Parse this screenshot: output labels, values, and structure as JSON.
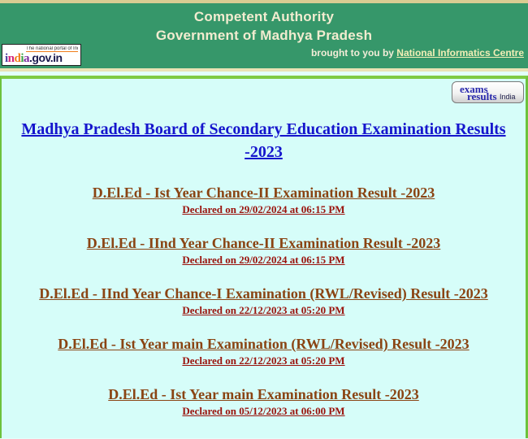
{
  "colors": {
    "header_green": "#36976a",
    "header_text_cream": "#f2ecd0",
    "tan_border": "#d9cc92",
    "page_background": "#e2fffc",
    "content_background": "#d6fdf9",
    "content_border_green": "#6cc23c",
    "heading_blue": "#1515cd",
    "result_link_brown": "#8a4413",
    "declared_red": "#9a120c",
    "exams_badge_blue": "#2a2aad"
  },
  "header": {
    "title_line1": "Competent Authority",
    "title_line2": "Government of Madhya Pradesh",
    "brought_text": "brought to you by ",
    "nic_link_label": "National Informatics Centre",
    "india_logo": {
      "tagline": "The national portal of India",
      "l1": "i",
      "l2": "n",
      "l3": "d",
      "l4": "i",
      "l5": "a",
      "suffix": ".gov.in"
    }
  },
  "exams_badge": {
    "line1": "exams",
    "line2": "results",
    "country": "India"
  },
  "main": {
    "heading": "Madhya Pradesh Board of Secondary Education Examination Results -2023",
    "results": [
      {
        "title": "D.El.Ed - Ist Year Chance-II Examination Result -2023",
        "declared": "Declared on 29/02/2024 at 06:15 PM"
      },
      {
        "title": "D.El.Ed - IInd Year Chance-II Examination Result -2023",
        "declared": "Declared on 29/02/2024 at 06:15 PM"
      },
      {
        "title": "D.El.Ed - IInd Year Chance-I Examination (RWL/Revised) Result -2023",
        "declared": "Declared on 22/12/2023 at 05:20 PM"
      },
      {
        "title": "D.El.Ed - Ist Year main Examination (RWL/Revised) Result -2023",
        "declared": "Declared on 22/12/2023 at 05:20 PM"
      },
      {
        "title": "D.El.Ed - Ist Year main Examination Result -2023",
        "declared": "Declared on 05/12/2023 at 06:00 PM"
      }
    ]
  }
}
